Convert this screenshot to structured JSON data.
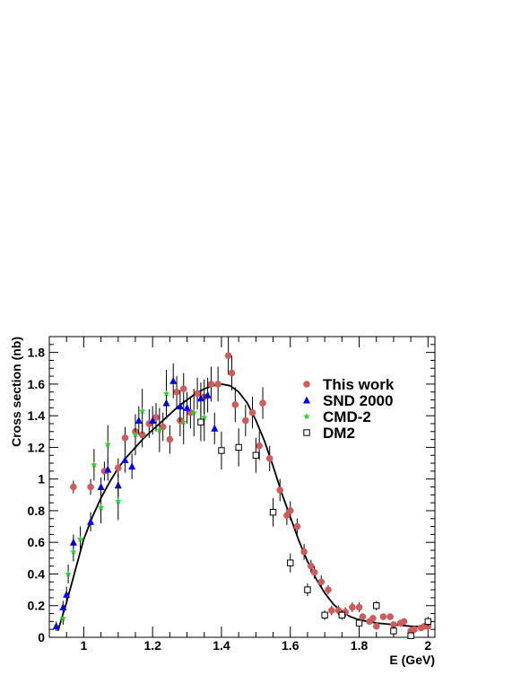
{
  "chart_data": {
    "type": "scatter",
    "title": "",
    "xlabel": "E (GeV)",
    "ylabel": "Cross section (nb)",
    "xlim": [
      0.9,
      2.02
    ],
    "ylim": [
      0,
      1.9
    ],
    "xticks": [
      1,
      1.2,
      1.4,
      1.6,
      1.8,
      2
    ],
    "xtick_labels": [
      "1",
      "1.2",
      "1.4",
      "1.6",
      "1.8",
      "2"
    ],
    "yticks": [
      0,
      0.2,
      0.4,
      0.6,
      0.8,
      1,
      1.2,
      1.4,
      1.6,
      1.8
    ],
    "ytick_labels": [
      "0",
      "0.2",
      "0.4",
      "0.6",
      "0.8",
      "1",
      "1.2",
      "1.4",
      "1.6",
      "1.8"
    ],
    "legend_position": "top-right",
    "series": [
      {
        "name": "This work",
        "color": "#cd5c5c",
        "marker": "circle",
        "points": [
          [
            0.97,
            0.95,
            0.04
          ],
          [
            1.02,
            0.95,
            0.05
          ],
          [
            1.06,
            1.05,
            0.06
          ],
          [
            1.1,
            1.07,
            0.06
          ],
          [
            1.12,
            1.26,
            0.07
          ],
          [
            1.15,
            1.3,
            0.08
          ],
          [
            1.17,
            1.28,
            0.08
          ],
          [
            1.19,
            1.35,
            0.09
          ],
          [
            1.21,
            1.39,
            0.09
          ],
          [
            1.23,
            1.33,
            0.09
          ],
          [
            1.25,
            1.25,
            0.09
          ],
          [
            1.27,
            1.55,
            0.1
          ],
          [
            1.28,
            1.37,
            0.1
          ],
          [
            1.29,
            1.57,
            0.1
          ],
          [
            1.31,
            1.42,
            0.1
          ],
          [
            1.33,
            1.54,
            0.1
          ],
          [
            1.35,
            1.52,
            0.11
          ],
          [
            1.37,
            1.6,
            0.11
          ],
          [
            1.39,
            1.6,
            0.11
          ],
          [
            1.42,
            1.78,
            0.12
          ],
          [
            1.43,
            1.67,
            0.11
          ],
          [
            1.44,
            1.47,
            0.11
          ],
          [
            1.47,
            1.37,
            0.1
          ],
          [
            1.49,
            1.42,
            0.1
          ],
          [
            1.51,
            1.21,
            0.09
          ],
          [
            1.52,
            1.48,
            0.1
          ],
          [
            1.54,
            1.13,
            0.08
          ],
          [
            1.57,
            0.93,
            0.07
          ],
          [
            1.59,
            0.77,
            0.06
          ],
          [
            1.6,
            0.8,
            0.06
          ],
          [
            1.62,
            0.7,
            0.05
          ],
          [
            1.64,
            0.54,
            0.05
          ],
          [
            1.66,
            0.45,
            0.04
          ],
          [
            1.67,
            0.41,
            0.04
          ],
          [
            1.69,
            0.35,
            0.04
          ],
          [
            1.71,
            0.3,
            0.03
          ],
          [
            1.72,
            0.17,
            0.03
          ],
          [
            1.74,
            0.17,
            0.03
          ],
          [
            1.76,
            0.16,
            0.03
          ],
          [
            1.78,
            0.19,
            0.03
          ],
          [
            1.8,
            0.19,
            0.03
          ],
          [
            1.81,
            0.13,
            0.02
          ],
          [
            1.83,
            0.1,
            0.02
          ],
          [
            1.84,
            0.12,
            0.02
          ],
          [
            1.85,
            0.07,
            0.02
          ],
          [
            1.87,
            0.13,
            0.02
          ],
          [
            1.89,
            0.13,
            0.02
          ],
          [
            1.9,
            0.08,
            0.02
          ],
          [
            1.92,
            0.09,
            0.02
          ],
          [
            1.93,
            0.1,
            0.02
          ],
          [
            1.95,
            0.04,
            0.02
          ],
          [
            1.96,
            0.05,
            0.02
          ],
          [
            1.98,
            0.06,
            0.02
          ],
          [
            1.99,
            0.07,
            0.02
          ],
          [
            2.0,
            0.07,
            0.02
          ]
        ]
      },
      {
        "name": "SND 2000",
        "color": "#0000ee",
        "marker": "triangle",
        "points": [
          [
            0.92,
            0.07,
            0.03
          ],
          [
            0.94,
            0.19,
            0.04
          ],
          [
            0.95,
            0.27,
            0.05
          ],
          [
            0.97,
            0.6,
            0.05
          ],
          [
            1.02,
            0.73,
            0.06
          ],
          [
            1.05,
            0.95,
            0.06
          ],
          [
            1.07,
            1.06,
            0.07
          ],
          [
            1.1,
            0.96,
            0.07
          ],
          [
            1.12,
            1.12,
            0.08
          ],
          [
            1.14,
            1.08,
            0.08
          ],
          [
            1.16,
            1.37,
            0.09
          ],
          [
            1.2,
            1.37,
            0.09
          ],
          [
            1.24,
            1.48,
            0.1
          ],
          [
            1.26,
            1.62,
            0.11
          ],
          [
            1.28,
            1.46,
            0.1
          ],
          [
            1.3,
            1.45,
            0.1
          ],
          [
            1.34,
            1.51,
            0.1
          ],
          [
            1.36,
            1.53,
            0.11
          ],
          [
            1.38,
            1.32,
            0.1
          ]
        ]
      },
      {
        "name": "CMD-2",
        "color": "#33cc33",
        "marker": "star",
        "points": [
          [
            0.94,
            0.12,
            0.04
          ],
          [
            0.955,
            0.4,
            0.06
          ],
          [
            0.97,
            0.54,
            0.06
          ],
          [
            0.99,
            0.62,
            0.08
          ],
          [
            1.03,
            1.09,
            0.1
          ],
          [
            1.05,
            0.82,
            0.1
          ],
          [
            1.07,
            1.22,
            0.12
          ],
          [
            1.1,
            0.86,
            0.12
          ],
          [
            1.15,
            1.28,
            0.13
          ],
          [
            1.17,
            1.43,
            0.14
          ],
          [
            1.22,
            1.31,
            0.14
          ],
          [
            1.24,
            1.54,
            0.15
          ],
          [
            1.29,
            1.36,
            0.14
          ],
          [
            1.32,
            1.42,
            0.15
          ],
          [
            1.35,
            1.39,
            0.15
          ]
        ]
      },
      {
        "name": "DM2",
        "color": "#000000",
        "marker": "open-square",
        "points": [
          [
            1.34,
            1.36,
            0.12
          ],
          [
            1.4,
            1.18,
            0.12
          ],
          [
            1.45,
            1.2,
            0.12
          ],
          [
            1.5,
            1.15,
            0.11
          ],
          [
            1.55,
            0.79,
            0.09
          ],
          [
            1.6,
            0.47,
            0.06
          ],
          [
            1.65,
            0.3,
            0.04
          ],
          [
            1.7,
            0.14,
            0.03
          ],
          [
            1.75,
            0.14,
            0.03
          ],
          [
            1.8,
            0.09,
            0.03
          ],
          [
            1.85,
            0.2,
            0.03
          ],
          [
            1.9,
            0.04,
            0.03
          ],
          [
            1.95,
            0.01,
            0.02
          ],
          [
            2.0,
            0.1,
            0.03
          ]
        ]
      }
    ],
    "fit_curve": {
      "color": "#000000",
      "points": [
        [
          0.925,
          0.04
        ],
        [
          0.95,
          0.22
        ],
        [
          0.975,
          0.42
        ],
        [
          1.0,
          0.62
        ],
        [
          1.025,
          0.76
        ],
        [
          1.05,
          0.88
        ],
        [
          1.075,
          0.98
        ],
        [
          1.1,
          1.07
        ],
        [
          1.125,
          1.14
        ],
        [
          1.15,
          1.2
        ],
        [
          1.175,
          1.26
        ],
        [
          1.2,
          1.31
        ],
        [
          1.225,
          1.36
        ],
        [
          1.25,
          1.41
        ],
        [
          1.275,
          1.46
        ],
        [
          1.3,
          1.5
        ],
        [
          1.325,
          1.54
        ],
        [
          1.35,
          1.57
        ],
        [
          1.375,
          1.59
        ],
        [
          1.4,
          1.6
        ],
        [
          1.425,
          1.59
        ],
        [
          1.45,
          1.55
        ],
        [
          1.475,
          1.48
        ],
        [
          1.5,
          1.37
        ],
        [
          1.525,
          1.24
        ],
        [
          1.55,
          1.08
        ],
        [
          1.575,
          0.91
        ],
        [
          1.6,
          0.76
        ],
        [
          1.625,
          0.61
        ],
        [
          1.65,
          0.48
        ],
        [
          1.675,
          0.37
        ],
        [
          1.7,
          0.28
        ],
        [
          1.725,
          0.21
        ],
        [
          1.75,
          0.16
        ],
        [
          1.775,
          0.13
        ],
        [
          1.8,
          0.11
        ],
        [
          1.85,
          0.09
        ],
        [
          1.9,
          0.08
        ],
        [
          1.95,
          0.07
        ],
        [
          2.0,
          0.065
        ]
      ]
    }
  }
}
